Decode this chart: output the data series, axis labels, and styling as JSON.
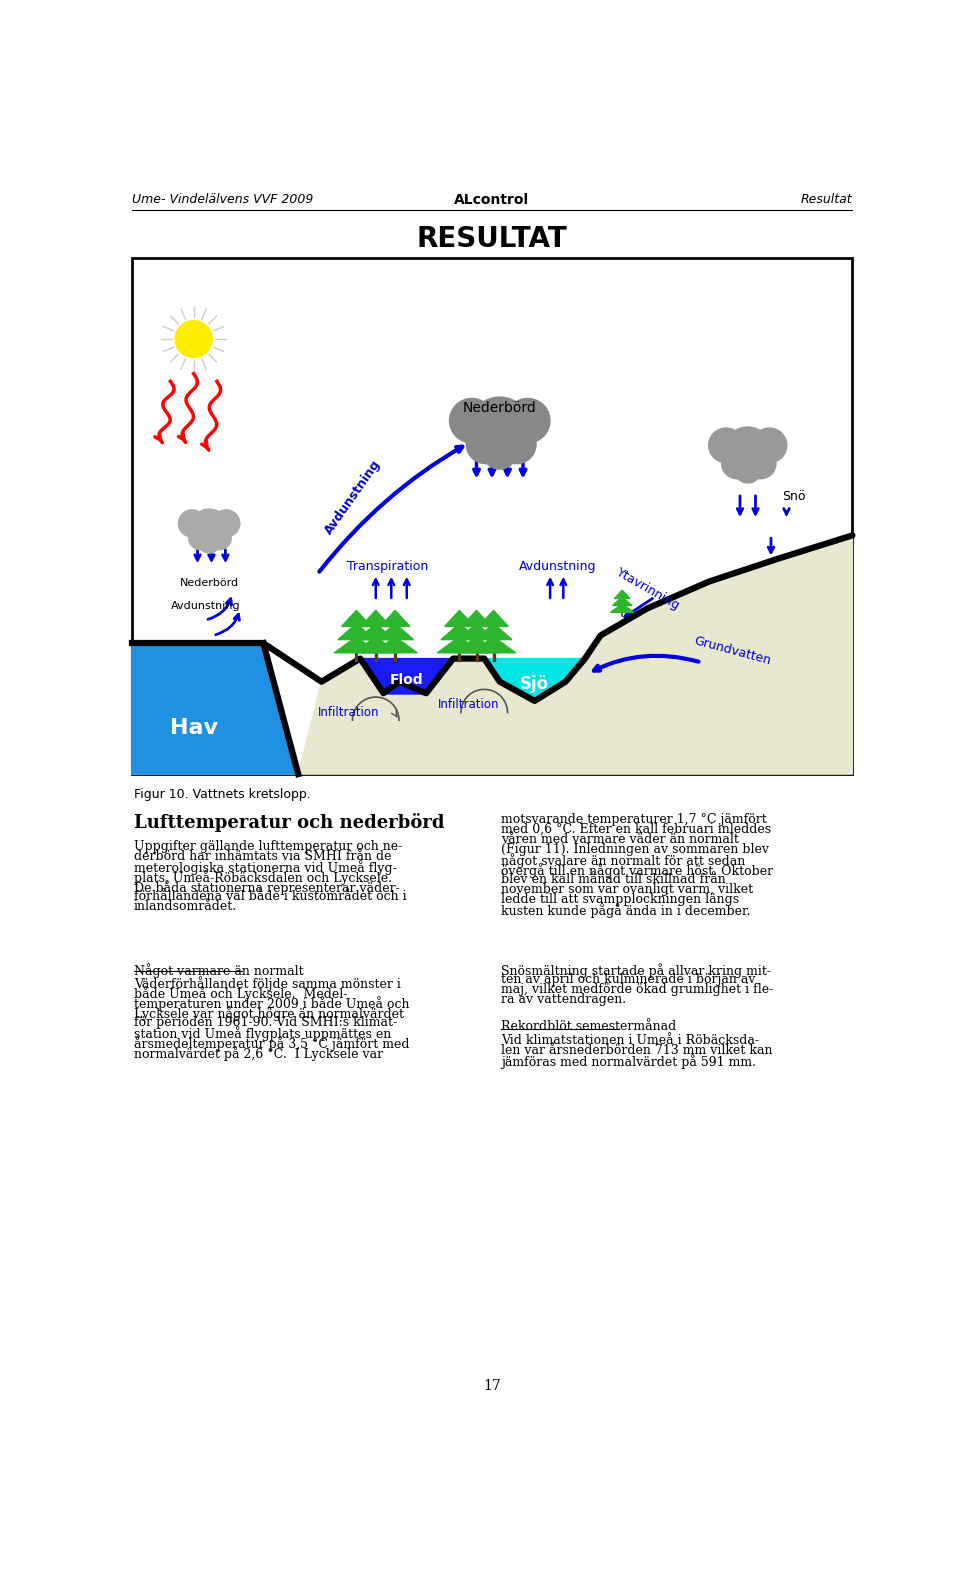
{
  "header_left": "Ume- Vindelälvens VVF 2009",
  "header_center": "ALcontrol",
  "header_right": "Resultat",
  "main_title": "RESULTAT",
  "figure_caption": "Figur 10. Vattnets kretslopp.",
  "section_title": "Lufttemperatur och nederbörd",
  "subsection_title": "Något varmare än normalt",
  "col1_para1": "Uppgifter gällande lufttemperatur och ne-\nderbörd har inhämtats via SMHI från de\nmeterologiska stationerna vid Umeå flyg-\nplats, Umeå-Röbäcksdalen och Lycksele.\nDe båda stationerna representerar väder-\nförhållandena väl både i kustområdet och i\ninlandsområdet.",
  "col1_para2": "Väderförhållandet följde samma mönster i\nbåde Umeå och Lycksele.  Medel-\ntemperaturen under 2009 i både Umeå och\nLycksele var något högre än normalvärdet\nför perioden 1961-90. Vid SMHI:s klimat-\nstation vid Umeå flygplats uppmättes en\nårsmedeltemperatur på 3,5 °C jämfört med\nnormalvärdet på 2,6 °C.  I Lycksele var",
  "col2_para1": "motsvarande temperaturer 1,7 °C jämfört\nmed 0,6 °C. Efter en kall februari inleddes\nvåren med varmare väder än normalt\n(Figur 11). Inledningen av sommaren blev\nnågot svalare än normalt för att sedan\növergå till en något varmare höst. Oktober\nblev en kall månad till skillnad från\nnovember som var ovanligt varm, vilket\nledde till att svampplockningen längs\nkusten kunde pågå ända in i december.",
  "col2_para2": "Snösmältning startade på allvar kring mit-\nten av april och kulminerade i början av\nmaj, vilket medförde ökad grumlighet i fle-\nra av vattendragen.",
  "subsection2_title": "Rekordblöt semestermånad",
  "col2_para3": "Vid klimatstationen i Umeå i Röbäcksda-\nlen var årsnederbörden 713 mm vilket kan\njämföras med normalvärdet på 591 mm.",
  "page_number": "17",
  "bg_color": "#ffffff",
  "text_color": "#000000",
  "header_font_size": 9,
  "title_font_size": 20,
  "body_font_size": 9,
  "section_title_font_size": 13
}
